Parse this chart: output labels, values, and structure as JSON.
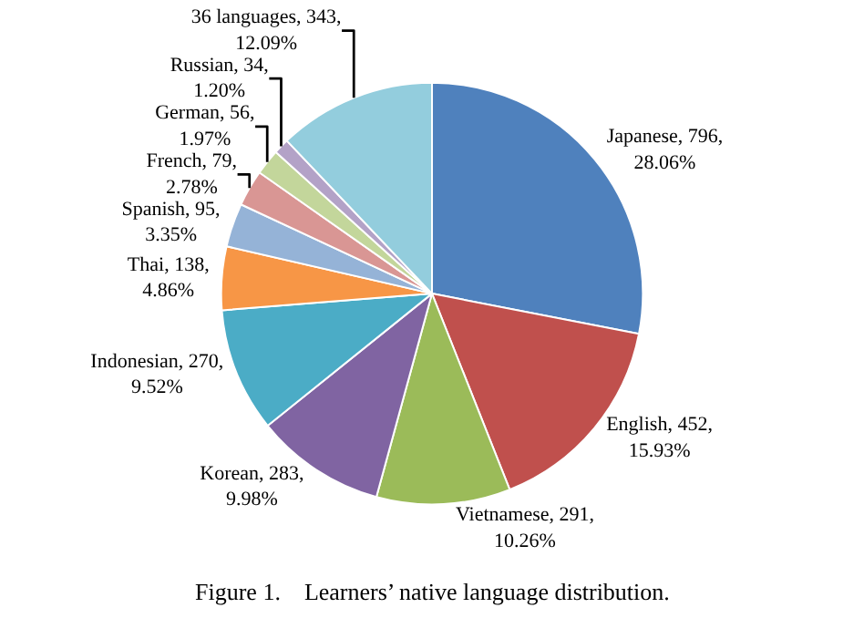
{
  "chart_data": {
    "type": "pie",
    "title": "Figure 1.    Learners’ native language distribution.",
    "categories": [
      "Japanese",
      "English",
      "Vietnamese",
      "Korean",
      "Indonesian",
      "Thai",
      "Spanish",
      "French",
      "German",
      "Russian",
      "36 languages"
    ],
    "values": [
      796,
      452,
      291,
      283,
      270,
      138,
      95,
      79,
      56,
      34,
      343
    ],
    "value_labels": [
      "796, 28.06%",
      "452, 15.93%",
      "291, 10.26%",
      "283, 9.98%",
      "270, 9.52%",
      "138, 4.86%",
      "95, 3.35%",
      "79, 2.78%",
      "56, 1.97%",
      "34, 1.20%",
      "343, 12.09%"
    ],
    "colors": [
      "#4f81bd",
      "#c0504d",
      "#9bbb59",
      "#8064a2",
      "#4bacc6",
      "#f79646",
      "#95b3d7",
      "#d99694",
      "#c3d69b",
      "#b3a2c7",
      "#93cddd"
    ],
    "legend": false
  }
}
